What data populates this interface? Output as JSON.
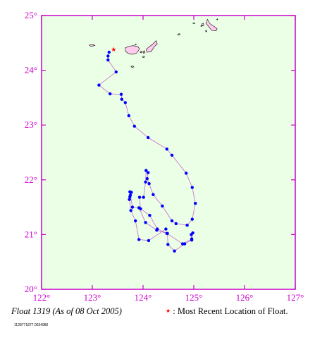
{
  "map": {
    "lon_range": [
      122,
      127
    ],
    "lat_range": [
      20,
      25
    ],
    "lon_ticks": [
      {
        "value": 122,
        "label": "122°"
      },
      {
        "value": 123,
        "label": "123°"
      },
      {
        "value": 124,
        "label": "124°"
      },
      {
        "value": 125,
        "label": "125°"
      },
      {
        "value": 126,
        "label": "126°"
      },
      {
        "value": 127,
        "label": "127°"
      }
    ],
    "lat_ticks": [
      {
        "value": 20,
        "label": "20°"
      },
      {
        "value": 21,
        "label": "21°"
      },
      {
        "value": 22,
        "label": "22°"
      },
      {
        "value": 23,
        "label": "23°"
      },
      {
        "value": 24,
        "label": "24°"
      },
      {
        "value": 25,
        "label": "25°"
      }
    ],
    "colors": {
      "ocean": "#eaffe6",
      "frame": "#cc00cc",
      "track_line": "#cc66cc",
      "float_dot": "#0000ff",
      "recent_marker": "#ff0000",
      "land_fill": "#ffccee",
      "land_stroke": "#000000"
    },
    "recent_location": {
      "lon": 123.42,
      "lat": 24.37
    },
    "track": [
      [
        123.33,
        24.33
      ],
      [
        123.31,
        24.26
      ],
      [
        123.31,
        24.19
      ],
      [
        123.47,
        23.97
      ],
      [
        123.13,
        23.73
      ],
      [
        123.35,
        23.57
      ],
      [
        123.57,
        23.56
      ],
      [
        123.58,
        23.47
      ],
      [
        123.65,
        23.41
      ],
      [
        123.72,
        23.17
      ],
      [
        123.83,
        22.98
      ],
      [
        124.1,
        22.77
      ],
      [
        124.47,
        22.56
      ],
      [
        124.57,
        22.45
      ],
      [
        124.85,
        22.12
      ],
      [
        124.97,
        21.86
      ],
      [
        125.03,
        21.57
      ],
      [
        124.97,
        21.28
      ],
      [
        124.87,
        21.17
      ],
      [
        124.65,
        21.2
      ],
      [
        124.57,
        21.25
      ],
      [
        124.38,
        21.52
      ],
      [
        124.2,
        21.73
      ],
      [
        124.12,
        21.93
      ],
      [
        124.08,
        22.02
      ],
      [
        124.1,
        22.13
      ],
      [
        124.06,
        22.17
      ],
      [
        124.05,
        21.96
      ],
      [
        124.01,
        21.68
      ],
      [
        123.93,
        21.68
      ],
      [
        123.95,
        21.47
      ],
      [
        124.13,
        21.35
      ],
      [
        124.28,
        21.1
      ],
      [
        124.48,
        21.02
      ],
      [
        124.49,
        20.82
      ],
      [
        124.62,
        20.7
      ],
      [
        124.82,
        20.83
      ],
      [
        124.96,
        20.9
      ],
      [
        124.95,
        21.0
      ],
      [
        124.98,
        21.03
      ],
      [
        124.96,
        20.92
      ],
      [
        124.78,
        20.83
      ],
      [
        124.47,
        21.02
      ],
      [
        124.27,
        21.08
      ],
      [
        124.05,
        21.22
      ],
      [
        123.92,
        21.49
      ],
      [
        123.79,
        21.5
      ],
      [
        123.75,
        21.72
      ],
      [
        123.77,
        21.77
      ],
      [
        123.74,
        21.78
      ],
      [
        123.74,
        21.69
      ],
      [
        123.73,
        21.64
      ],
      [
        123.76,
        21.44
      ],
      [
        123.85,
        21.25
      ],
      [
        123.92,
        20.91
      ],
      [
        124.11,
        20.89
      ],
      [
        124.45,
        21.1
      ]
    ],
    "islands": [
      {
        "name": "iriomote",
        "pts": [
          [
            123.65,
            24.41
          ],
          [
            123.72,
            24.44
          ],
          [
            123.81,
            24.45
          ],
          [
            123.9,
            24.43
          ],
          [
            123.93,
            24.39
          ],
          [
            123.87,
            24.31
          ],
          [
            123.78,
            24.29
          ],
          [
            123.7,
            24.31
          ],
          [
            123.65,
            24.35
          ]
        ]
      },
      {
        "name": "ishigaki",
        "pts": [
          [
            124.06,
            24.38
          ],
          [
            124.12,
            24.43
          ],
          [
            124.18,
            24.47
          ],
          [
            124.26,
            24.54
          ],
          [
            124.28,
            24.48
          ],
          [
            124.22,
            24.43
          ],
          [
            124.16,
            24.34
          ],
          [
            124.08,
            24.33
          ]
        ]
      },
      {
        "name": "taketomi",
        "pts": [
          [
            124.0,
            24.34
          ],
          [
            124.03,
            24.36
          ],
          [
            124.04,
            24.32
          ],
          [
            124.01,
            24.31
          ]
        ]
      },
      {
        "name": "kohama",
        "pts": [
          [
            123.94,
            24.34
          ],
          [
            123.98,
            24.35
          ],
          [
            123.98,
            24.32
          ],
          [
            123.95,
            24.32
          ]
        ]
      },
      {
        "name": "hateruma",
        "pts": [
          [
            123.76,
            24.07
          ],
          [
            123.8,
            24.08
          ],
          [
            123.82,
            24.06
          ],
          [
            123.78,
            24.05
          ]
        ]
      },
      {
        "name": "yonaguni",
        "pts": [
          [
            122.94,
            24.46
          ],
          [
            123.02,
            24.47
          ],
          [
            123.05,
            24.45
          ],
          [
            122.97,
            24.44
          ]
        ]
      },
      {
        "name": "kuroshima",
        "pts": [
          [
            123.99,
            24.25
          ],
          [
            124.02,
            24.26
          ],
          [
            124.03,
            24.24
          ],
          [
            124.0,
            24.23
          ]
        ]
      },
      {
        "name": "hatoma",
        "pts": [
          [
            123.84,
            24.47
          ],
          [
            123.86,
            24.48
          ],
          [
            123.87,
            24.47
          ],
          [
            123.85,
            24.46
          ]
        ]
      },
      {
        "name": "tarama",
        "pts": [
          [
            124.68,
            24.66
          ],
          [
            124.72,
            24.67
          ],
          [
            124.73,
            24.65
          ],
          [
            124.69,
            24.64
          ]
        ]
      },
      {
        "name": "miyako",
        "pts": [
          [
            125.24,
            24.86
          ],
          [
            125.3,
            24.79
          ],
          [
            125.35,
            24.73
          ],
          [
            125.44,
            24.72
          ],
          [
            125.46,
            24.76
          ],
          [
            125.4,
            24.8
          ],
          [
            125.32,
            24.85
          ],
          [
            125.27,
            24.93
          ]
        ]
      },
      {
        "name": "irabu",
        "pts": [
          [
            125.16,
            24.85
          ],
          [
            125.19,
            24.86
          ],
          [
            125.2,
            24.82
          ],
          [
            125.17,
            24.81
          ]
        ]
      },
      {
        "name": "minna",
        "pts": [
          [
            124.98,
            24.86
          ],
          [
            125.01,
            24.87
          ],
          [
            125.02,
            24.85
          ]
        ]
      },
      {
        "name": "shimoji",
        "pts": [
          [
            125.14,
            24.82
          ],
          [
            125.16,
            24.82
          ],
          [
            125.16,
            24.8
          ],
          [
            125.14,
            24.8
          ]
        ]
      },
      {
        "name": "kurima",
        "pts": [
          [
            125.23,
            24.72
          ],
          [
            125.25,
            24.73
          ],
          [
            125.26,
            24.71
          ],
          [
            125.24,
            24.7
          ]
        ]
      },
      {
        "name": "ogami",
        "pts": [
          [
            125.45,
            24.93
          ],
          [
            125.47,
            24.94
          ],
          [
            125.47,
            24.92
          ]
        ]
      }
    ]
  },
  "footer": {
    "caption": "Float 1319 (As of 08 Oct 2005)",
    "legend_star": "★",
    "legend_text": ": Most Recent Location of Float.",
    "file_id": "1128771877.0034980"
  }
}
